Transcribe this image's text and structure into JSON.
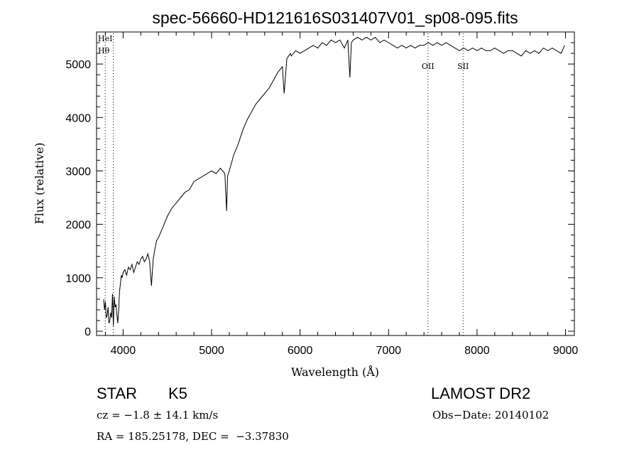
{
  "chart_data": {
    "type": "line",
    "title": "spec-56660-HD121616S031407V01_sp08-095.fits",
    "xlabel": "Wavelength (Å)",
    "ylabel": "Flux (relative)",
    "xlim": [
      3700,
      9100
    ],
    "ylim": [
      -80,
      5600
    ],
    "xticks": [
      4000,
      5000,
      6000,
      7000,
      8000,
      9000
    ],
    "yticks": [
      0,
      1000,
      2000,
      3000,
      4000,
      5000
    ],
    "grid": false,
    "line_color": "#000000",
    "series": [
      {
        "x": [
          3780,
          3790,
          3800,
          3810,
          3820,
          3830,
          3840,
          3850,
          3860,
          3870,
          3880,
          3890,
          3900,
          3910,
          3920,
          3930,
          3940,
          3950,
          3960,
          3970,
          3980,
          3990,
          4000,
          4020,
          4040,
          4060,
          4080,
          4100,
          4120,
          4140,
          4160,
          4180,
          4200,
          4220,
          4240,
          4260,
          4280,
          4300,
          4320,
          4340,
          4360,
          4380,
          4400,
          4450,
          4500,
          4550,
          4600,
          4650,
          4700,
          4750,
          4800,
          4850,
          4900,
          4950,
          5000,
          5050,
          5100,
          5150,
          5170,
          5180,
          5200,
          5250,
          5300,
          5350,
          5400,
          5450,
          5500,
          5550,
          5600,
          5650,
          5700,
          5750,
          5800,
          5820,
          5850,
          5890,
          5900,
          5950,
          6000,
          6050,
          6100,
          6150,
          6200,
          6250,
          6300,
          6350,
          6400,
          6450,
          6500,
          6540,
          6563,
          6580,
          6600,
          6650,
          6700,
          6750,
          6800,
          6850,
          6900,
          6950,
          7000,
          7050,
          7100,
          7150,
          7200,
          7250,
          7300,
          7350,
          7400,
          7450,
          7500,
          7550,
          7600,
          7650,
          7700,
          7750,
          7800,
          7850,
          7900,
          7950,
          8000,
          8050,
          8100,
          8150,
          8200,
          8250,
          8300,
          8350,
          8400,
          8450,
          8500,
          8550,
          8600,
          8650,
          8700,
          8750,
          8800,
          8850,
          8900,
          8950,
          8990
        ],
        "y": [
          600,
          400,
          550,
          250,
          300,
          450,
          150,
          200,
          350,
          250,
          700,
          100,
          650,
          450,
          500,
          300,
          150,
          400,
          750,
          900,
          1050,
          1000,
          1100,
          1150,
          1050,
          1200,
          1150,
          1250,
          1100,
          1200,
          1300,
          1250,
          1350,
          1400,
          1300,
          1350,
          1450,
          1300,
          850,
          1350,
          1550,
          1700,
          1750,
          1950,
          2150,
          2300,
          2400,
          2500,
          2600,
          2650,
          2800,
          2850,
          2900,
          2950,
          3000,
          2950,
          3050,
          2950,
          2250,
          2900,
          3000,
          3300,
          3500,
          3750,
          3950,
          4100,
          4250,
          4350,
          4450,
          4550,
          4700,
          4850,
          4950,
          4450,
          5100,
          5200,
          5150,
          5250,
          5200,
          5250,
          5300,
          5350,
          5300,
          5400,
          5350,
          5450,
          5400,
          5450,
          5300,
          5450,
          4750,
          5400,
          5450,
          5500,
          5450,
          5500,
          5450,
          5500,
          5400,
          5450,
          5400,
          5350,
          5300,
          5350,
          5300,
          5350,
          5300,
          5350,
          5350,
          5400,
          5350,
          5400,
          5350,
          5400,
          5350,
          5300,
          5250,
          5300,
          5250,
          5300,
          5250,
          5300,
          5250,
          5250,
          5300,
          5250,
          5200,
          5250,
          5250,
          5200,
          5150,
          5250,
          5200,
          5250,
          5200,
          5300,
          5250,
          5300,
          5250,
          5200,
          5350
        ]
      }
    ],
    "line_labels": [
      {
        "label": "HeI",
        "x": 3889
      },
      {
        "label": "Hθ",
        "x": 3798
      },
      {
        "label": "OII",
        "x": 7445
      },
      {
        "label": "SII",
        "x": 7842
      }
    ]
  },
  "info": {
    "object": "STAR",
    "subclass": "K5",
    "survey": "LAMOST DR2",
    "cz": "cz = −1.8 ± 14.1 km/s",
    "obs_date": "Obs−Date: 20140102",
    "coords": "RA = 185.25178, DEC =  −3.37830"
  }
}
